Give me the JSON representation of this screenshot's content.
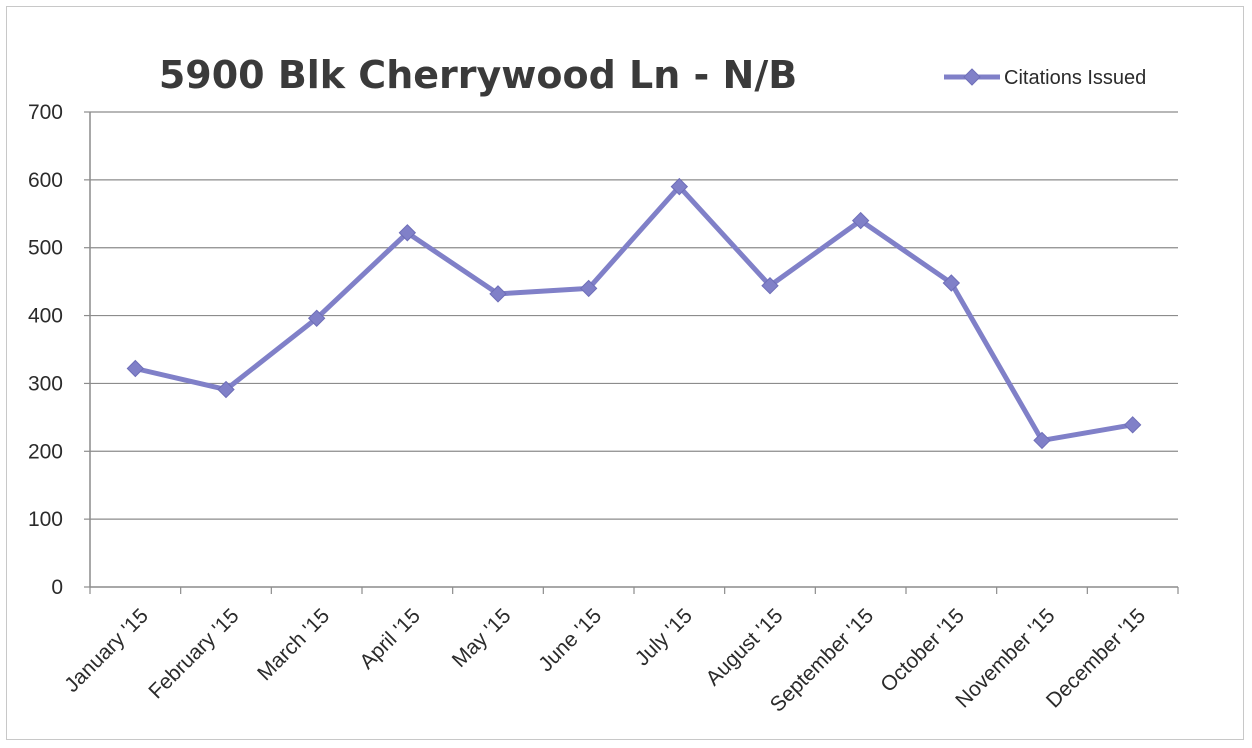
{
  "chart_data": {
    "type": "line",
    "title": "5900 Blk Cherrywood Ln - N/B",
    "xlabel": "",
    "ylabel": "",
    "categories": [
      "January '15",
      "February '15",
      "March '15",
      "April '15",
      "May '15",
      "June '15",
      "July '15",
      "August '15",
      "September '15",
      "October '15",
      "November '15",
      "December '15"
    ],
    "series": [
      {
        "name": "Citations Issued",
        "values": [
          322,
          291,
          396,
          522,
          432,
          440,
          590,
          444,
          540,
          448,
          216,
          239
        ]
      }
    ],
    "ylim": [
      0,
      700
    ],
    "yticks": [
      0,
      100,
      200,
      300,
      400,
      500,
      600,
      700
    ],
    "grid": true,
    "legend_position": "top-right",
    "colors": {
      "series": "#8080c8",
      "grid": "#8c8c8c",
      "axis": "#8c8c8c"
    },
    "marker": "diamond"
  }
}
